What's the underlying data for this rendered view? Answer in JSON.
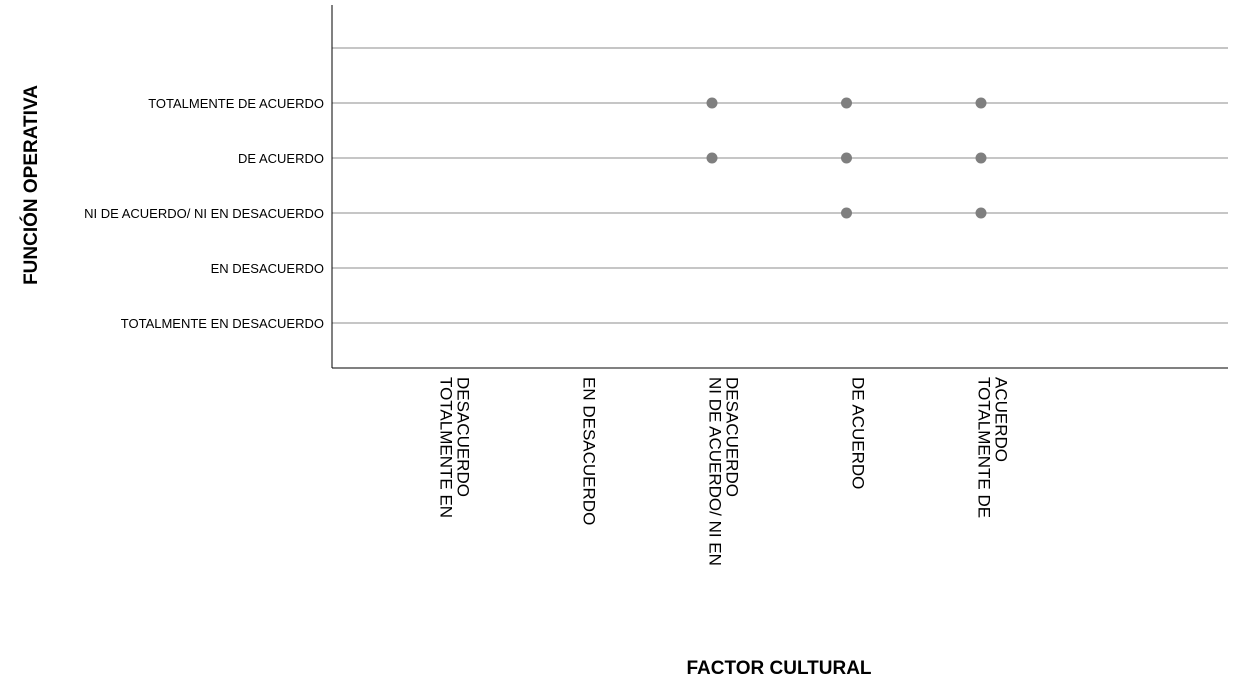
{
  "chart_data": {
    "type": "scatter",
    "xlabel": "FACTOR CULTURAL",
    "ylabel": "FUNCIÓN OPERATIVA",
    "x_categories": [
      "TOTALMENTE EN DESACUERDO",
      "EN DESACUERDO",
      "NI DE ACUERDO/ NI EN DESACUERDO",
      "DE ACUERDO",
      "TOTALMENTE DE ACUERDO"
    ],
    "x_tick_lines": [
      [
        "TOTALMENTE EN",
        "DESACUERDO"
      ],
      [
        "EN DESACUERDO"
      ],
      [
        "NI DE ACUERDO/ NI EN",
        "DESACUERDO"
      ],
      [
        "DE ACUERDO"
      ],
      [
        "TOTALMENTE DE",
        "ACUERDO"
      ]
    ],
    "y_categories": [
      "TOTALMENTE EN DESACUERDO",
      "EN DESACUERDO",
      "NI DE ACUERDO/ NI EN DESACUERDO",
      "DE ACUERDO",
      "TOTALMENTE DE ACUERDO"
    ],
    "points": [
      {
        "x": "NI DE ACUERDO/ NI EN DESACUERDO",
        "y": "TOTALMENTE DE ACUERDO"
      },
      {
        "x": "DE ACUERDO",
        "y": "TOTALMENTE DE ACUERDO"
      },
      {
        "x": "TOTALMENTE DE ACUERDO",
        "y": "TOTALMENTE DE ACUERDO"
      },
      {
        "x": "NI DE ACUERDO/ NI EN DESACUERDO",
        "y": "DE ACUERDO"
      },
      {
        "x": "DE ACUERDO",
        "y": "DE ACUERDO"
      },
      {
        "x": "TOTALMENTE DE ACUERDO",
        "y": "DE ACUERDO"
      },
      {
        "x": "DE ACUERDO",
        "y": "NI DE ACUERDO/ NI EN DESACUERDO"
      },
      {
        "x": "TOTALMENTE DE ACUERDO",
        "y": "NI DE ACUERDO/ NI EN DESACUERDO"
      }
    ],
    "grid": "horizontal",
    "legend": "none",
    "colors": {
      "point": "#7f7f7f",
      "gridline": "#b4b4b4",
      "axis": "#000000"
    }
  }
}
